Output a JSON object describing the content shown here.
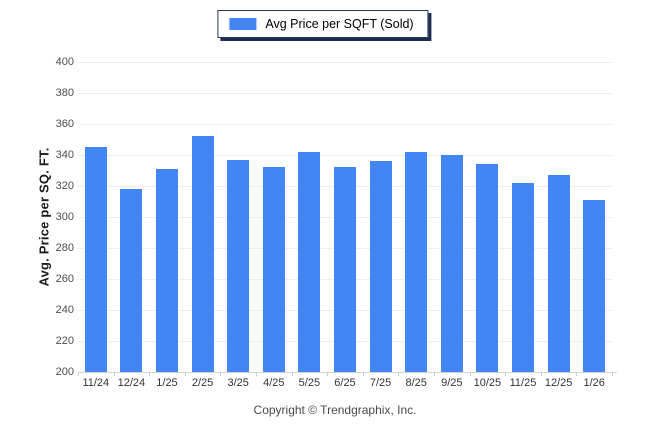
{
  "legend": {
    "label": "Avg Price per SQFT (Sold)",
    "swatch_color": "#4285F4"
  },
  "footer": {
    "copyright": "Copyright © Trendgraphix, Inc."
  },
  "colors": {
    "bar": "#4285F4",
    "gridline": "#efefef",
    "axis_line": "#d4d4d4",
    "legend_border": "#243a5e",
    "legend_shadow": "#1d2c4f"
  },
  "chart_data": {
    "type": "bar",
    "title": "",
    "xlabel": "",
    "ylabel": "Avg. Price per SQ. FT.",
    "categories": [
      "11/24",
      "12/24",
      "1/25",
      "2/25",
      "3/25",
      "4/25",
      "5/25",
      "6/25",
      "7/25",
      "8/25",
      "9/25",
      "10/25",
      "11/25",
      "12/25",
      "1/26"
    ],
    "series": [
      {
        "name": "Avg Price per SQFT (Sold)",
        "color": "#4285F4",
        "values": [
          345,
          318,
          331,
          352,
          337,
          332,
          342,
          332,
          336,
          342,
          340,
          334,
          322,
          327,
          311
        ]
      }
    ],
    "ylim": [
      200,
      400
    ],
    "yticks": [
      200,
      220,
      240,
      260,
      280,
      300,
      320,
      340,
      360,
      380,
      400
    ],
    "grid": true,
    "legend_position": "top-center"
  }
}
